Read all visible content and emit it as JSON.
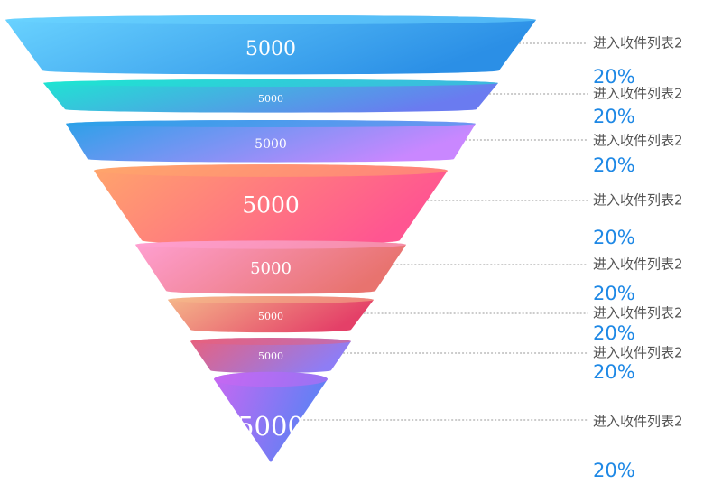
{
  "chart_data": {
    "type": "funnel",
    "title": "",
    "stages": [
      {
        "name": "进入收件列表2",
        "value": "5000",
        "percent": "20%",
        "colors": [
          "#6ad3ff",
          "#2b8fe6"
        ]
      },
      {
        "name": "进入收件列表2",
        "value": "5000",
        "percent": "20%",
        "colors": [
          "#1ee6d2",
          "#6a7bf0"
        ]
      },
      {
        "name": "进入收件列表2",
        "value": "5000",
        "percent": "20%",
        "colors": [
          "#2aa1e8",
          "#c987ff"
        ]
      },
      {
        "name": "进入收件列表2",
        "value": "5000",
        "percent": "20%",
        "colors": [
          "#ffa56b",
          "#ff5591"
        ]
      },
      {
        "name": "进入收件列表2",
        "value": "5000",
        "percent": "20%",
        "colors": [
          "#ffa0d2",
          "#e8736f"
        ]
      },
      {
        "name": "进入收件列表2",
        "value": "5000",
        "percent": "20%",
        "colors": [
          "#f5b88a",
          "#e44068"
        ]
      },
      {
        "name": "进入收件列表2",
        "value": "5000",
        "percent": "20%",
        "colors": [
          "#e8617d",
          "#8e7df5"
        ]
      },
      {
        "name": "进入收件列表2",
        "value": "5000",
        "percent": "20%",
        "colors": [
          "#c768f2",
          "#5a82f5"
        ]
      }
    ]
  }
}
